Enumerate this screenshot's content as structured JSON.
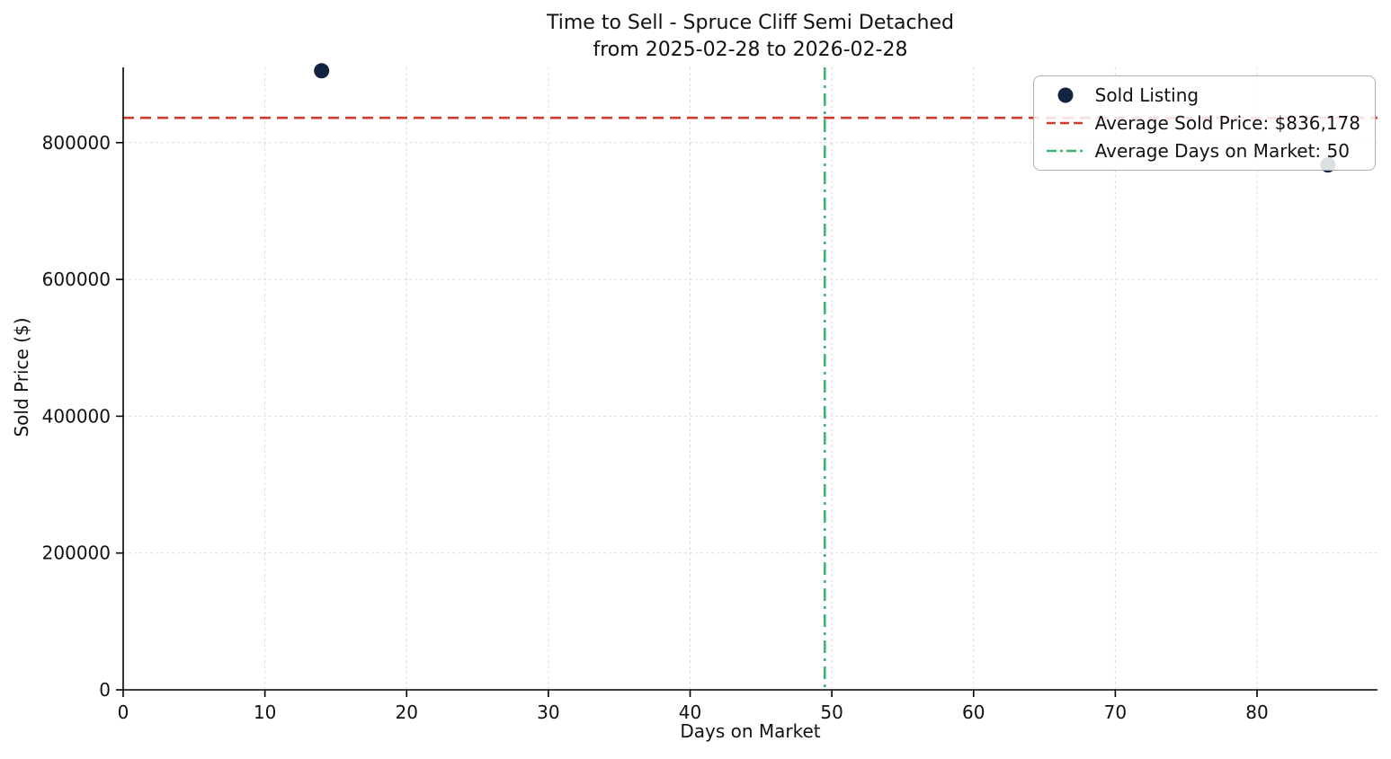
{
  "figure": {
    "title_line1": "Time to Sell - Spruce Cliff Semi Detached",
    "title_line2": "from 2025-02-28 to 2026-02-28"
  },
  "chart_data": {
    "type": "scatter",
    "title": "Time to Sell - Spruce Cliff Semi Detached\nfrom 2025-02-28 to 2026-02-28",
    "xlabel": "Days on Market",
    "ylabel": "Sold Price ($)",
    "xlim": [
      0,
      88.5
    ],
    "ylim": [
      0,
      910000
    ],
    "x_ticks": [
      0,
      10,
      20,
      30,
      40,
      50,
      60,
      70,
      80
    ],
    "y_ticks": [
      0,
      200000,
      400000,
      600000,
      800000
    ],
    "grid": true,
    "legend_position": "upper right",
    "series": [
      {
        "name": "Sold Listing",
        "type": "scatter",
        "color": "#132440",
        "points": [
          {
            "x": 14,
            "y": 905000
          },
          {
            "x": 85,
            "y": 767356
          }
        ]
      }
    ],
    "reference_lines": [
      {
        "name": "Average Sold Price: $836,178",
        "orientation": "horizontal",
        "value": 836178,
        "color": "#d0392b",
        "style": "dashed"
      },
      {
        "name": "Average Days on Market: 50",
        "orientation": "vertical",
        "value": 49.5,
        "color": "#3cb371",
        "style": "dashdot"
      }
    ],
    "legend": [
      {
        "label": "Sold Listing",
        "marker": "dot",
        "color": "#132440"
      },
      {
        "label": "Average Sold Price: $836,178",
        "marker": "dashed-line",
        "color": "#d0392b"
      },
      {
        "label": "Average Days on Market: 50",
        "marker": "dashdot-line",
        "color": "#3cb371"
      }
    ]
  }
}
